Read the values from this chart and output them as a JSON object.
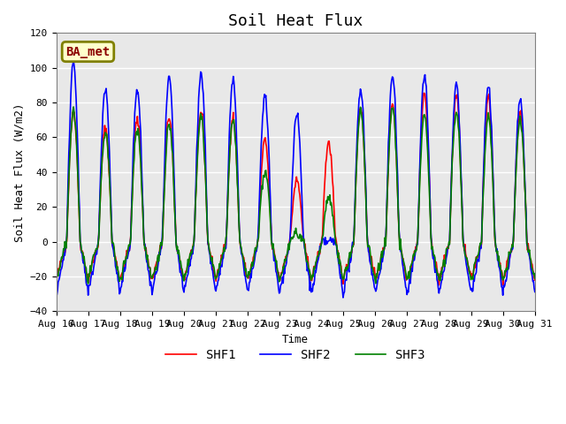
{
  "title": "Soil Heat Flux",
  "ylabel": "Soil Heat Flux (W/m2)",
  "xlabel": "Time",
  "ylim": [
    -40,
    120
  ],
  "bg_color": "#e8e8e8",
  "grid_color": "white",
  "legend_label": "BA_met",
  "series": [
    "SHF1",
    "SHF2",
    "SHF3"
  ],
  "colors": [
    "red",
    "blue",
    "green"
  ],
  "x_tick_labels": [
    "Aug 16",
    "Aug 17",
    "Aug 18",
    "Aug 19",
    "Aug 20",
    "Aug 21",
    "Aug 22",
    "Aug 23",
    "Aug 24",
    "Aug 25",
    "Aug 26",
    "Aug 27",
    "Aug 28",
    "Aug 29",
    "Aug 30",
    "Aug 31"
  ],
  "n_days": 15,
  "pts_per_day": 48,
  "amplitudes_shf1": [
    75,
    65,
    70,
    72,
    75,
    72,
    58,
    35,
    57,
    78,
    80,
    85,
    84,
    83,
    75
  ],
  "amplitudes_shf2": [
    104,
    88,
    87,
    94,
    97,
    93,
    84,
    73,
    0,
    88,
    95,
    95,
    91,
    90,
    81
  ],
  "amplitudes_shf3": [
    75,
    63,
    65,
    68,
    72,
    69,
    40,
    5,
    25,
    75,
    77,
    72,
    75,
    72,
    70
  ],
  "night_depth_shf1": -22,
  "night_depth_shf2": -30,
  "night_depth_shf3": -22,
  "noise_std": 1.5,
  "seed": 42,
  "linewidth": 1.2,
  "title_fontsize": 13,
  "axis_label_fontsize": 9,
  "tick_fontsize": 8,
  "legend_fontsize": 10
}
